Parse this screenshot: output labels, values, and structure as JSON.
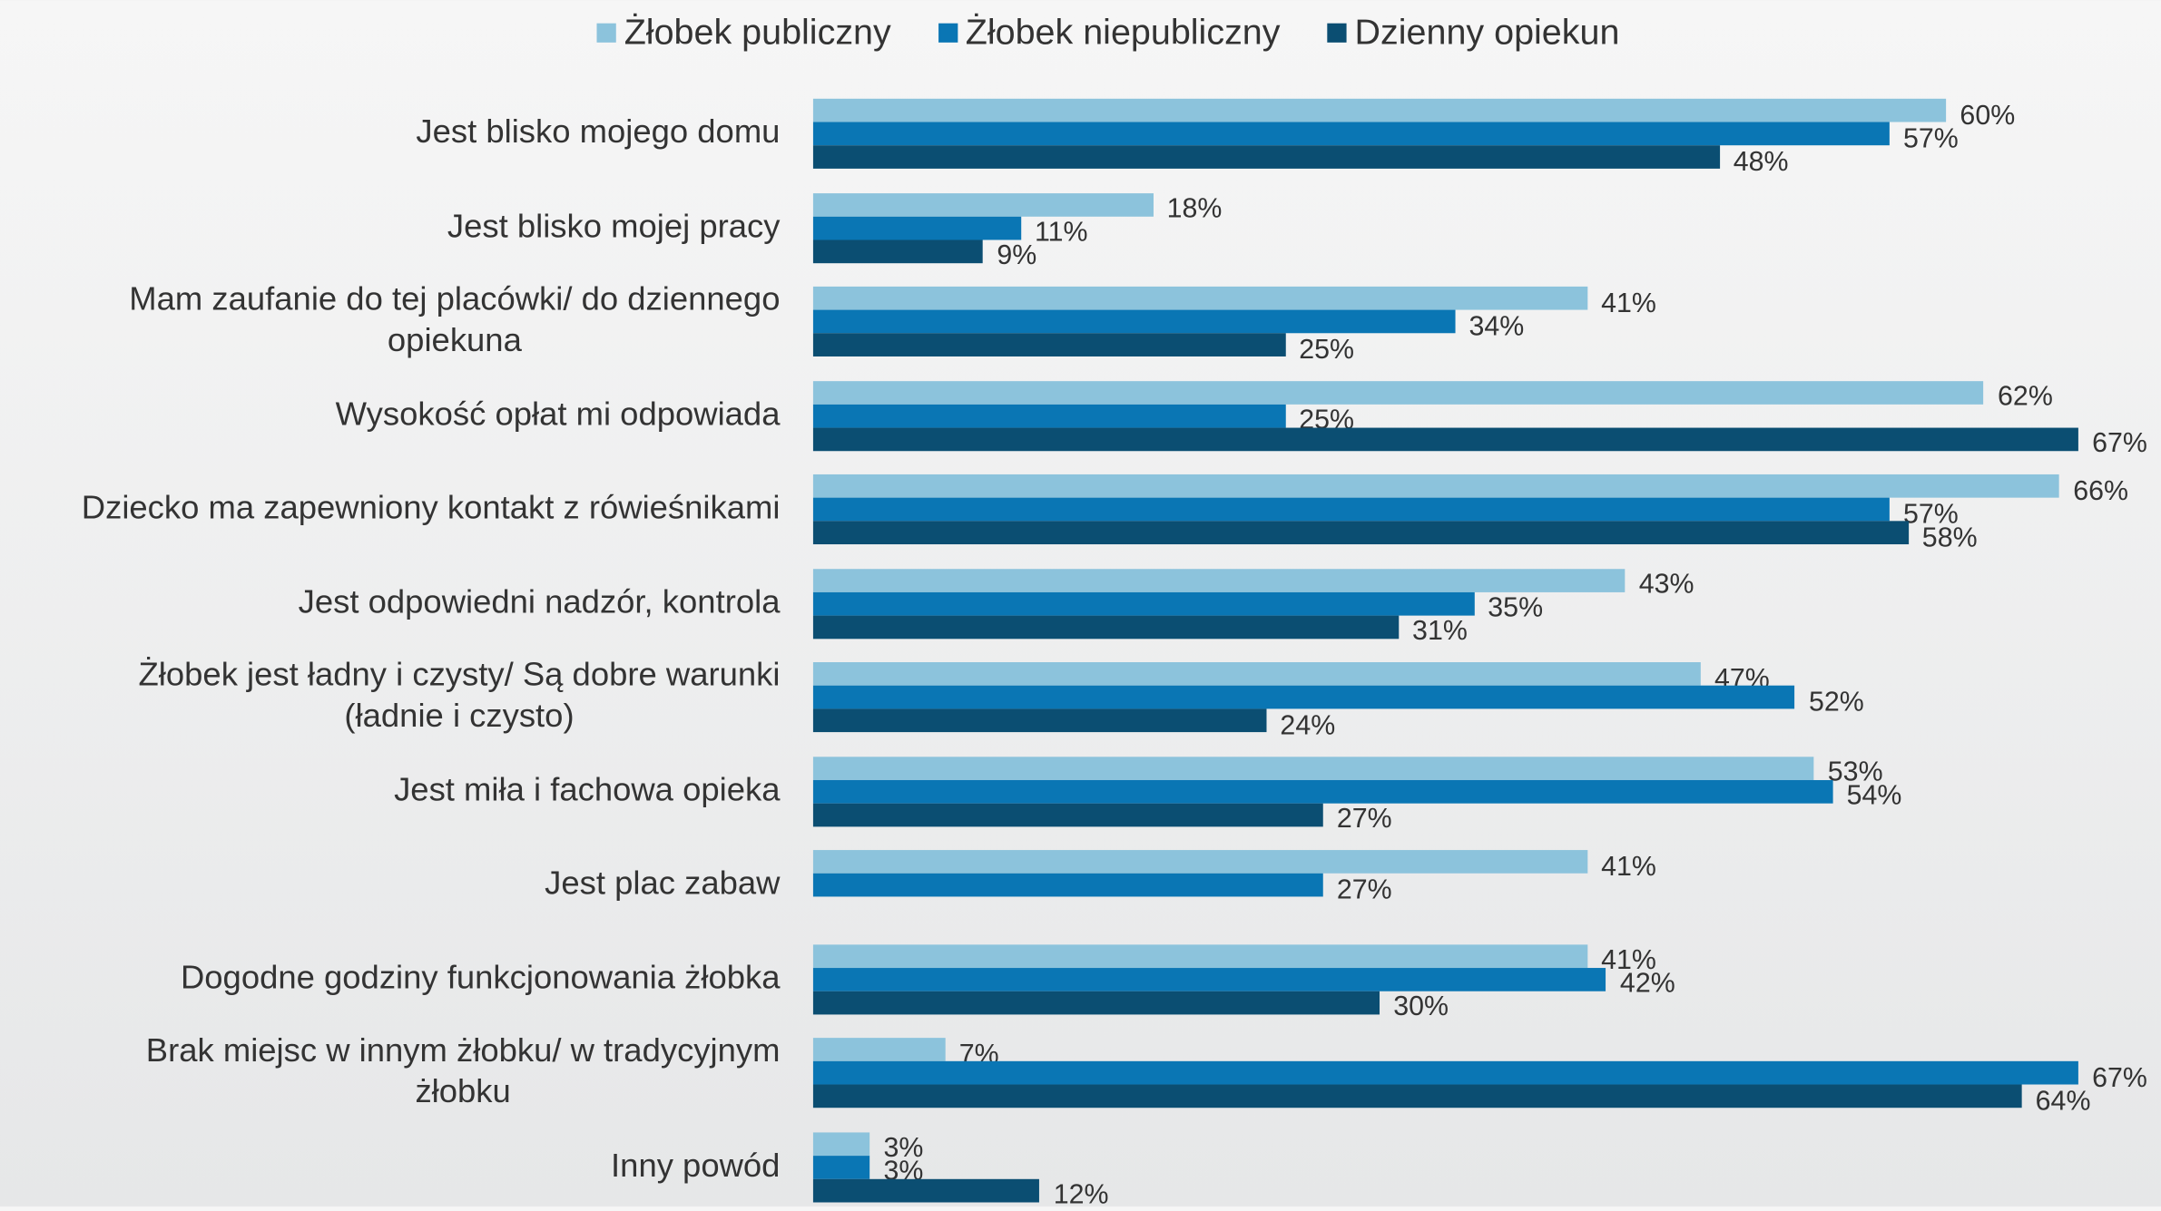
{
  "chart_data": {
    "type": "bar",
    "orientation": "horizontal",
    "categories": [
      "Jest blisko mojego domu",
      "Jest blisko mojej pracy",
      "Mam zaufanie do tej placówki/ do dziennego\nopiekuna",
      "Wysokość opłat mi odpowiada",
      "Dziecko ma zapewniony kontakt z rówieśnikami",
      "Jest odpowiedni nadzór, kontrola",
      "Żłobek jest ładny i czysty/ Są dobre warunki\n(ładnie i czysto)",
      "Jest miła i fachowa opieka",
      "Jest plac zabaw",
      "Dogodne godziny funkcjonowania żłobka",
      "Brak miejsc w innym żłobku/ w tradycyjnym\nżłobku",
      "Inny powód"
    ],
    "series": [
      {
        "name": "Żłobek publiczny",
        "color": "#8cc3dc",
        "values": [
          60,
          18,
          41,
          62,
          66,
          43,
          47,
          53,
          41,
          41,
          7,
          3
        ],
        "value_labels": [
          "60%",
          "18%",
          "41%",
          "62%",
          "66%",
          "43%",
          "47%",
          "53%",
          "41%",
          "41%",
          "7%",
          "3%"
        ]
      },
      {
        "name": "Żłobek niepubliczny",
        "color": "#0a76b4",
        "values": [
          57,
          11,
          34,
          25,
          57,
          35,
          52,
          54,
          27,
          42,
          67,
          3
        ],
        "value_labels": [
          "57%",
          "11%",
          "34%",
          "25%",
          "57%",
          "35%",
          "52%",
          "54%",
          "27%",
          "42%",
          "67%",
          "3%"
        ]
      },
      {
        "name": "Dzienny opiekun",
        "color": "#0b4e72",
        "values": [
          48,
          9,
          25,
          67,
          58,
          31,
          24,
          27,
          null,
          30,
          64,
          12
        ],
        "value_labels": [
          "48%",
          "9%",
          "25%",
          "67%",
          "58%",
          "31%",
          "24%",
          "27%",
          null,
          "30%",
          "64%",
          "12%"
        ]
      }
    ],
    "legend": "top"
  }
}
